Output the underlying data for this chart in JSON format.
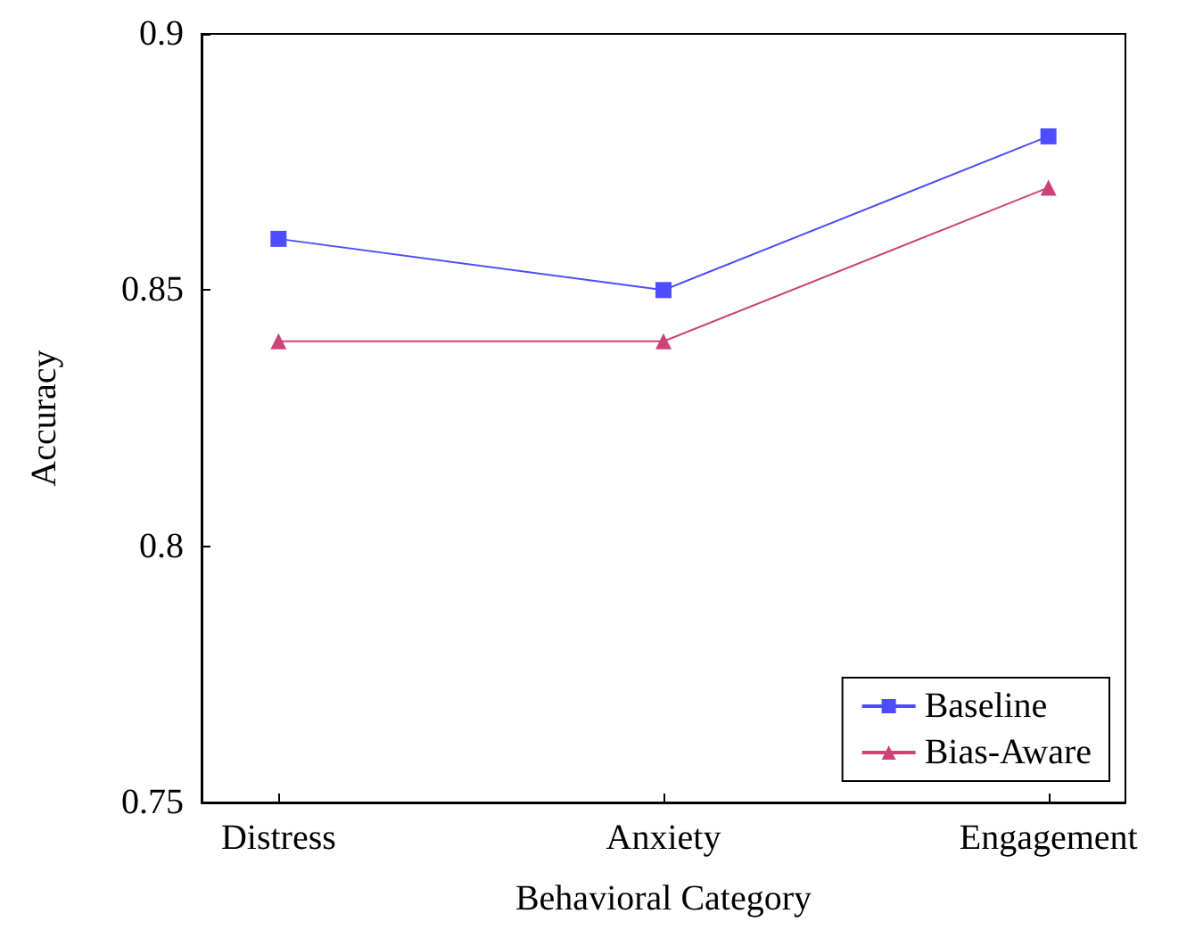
{
  "chart_data": {
    "type": "line",
    "xlabel": "Behavioral Category",
    "ylabel": "Accuracy",
    "categories": [
      "Distress",
      "Anxiety",
      "Engagement"
    ],
    "series": [
      {
        "name": "Baseline",
        "color": "#4d4dff",
        "marker": "square",
        "values": [
          0.86,
          0.85,
          0.88
        ]
      },
      {
        "name": "Bias-Aware",
        "color": "#cc4477",
        "marker": "triangle",
        "values": [
          0.84,
          0.84,
          0.87
        ]
      }
    ],
    "ylim": [
      0.75,
      0.9
    ],
    "yticks": [
      0.75,
      0.8,
      0.85,
      0.9
    ],
    "grid": false,
    "legend": "bottom right"
  }
}
